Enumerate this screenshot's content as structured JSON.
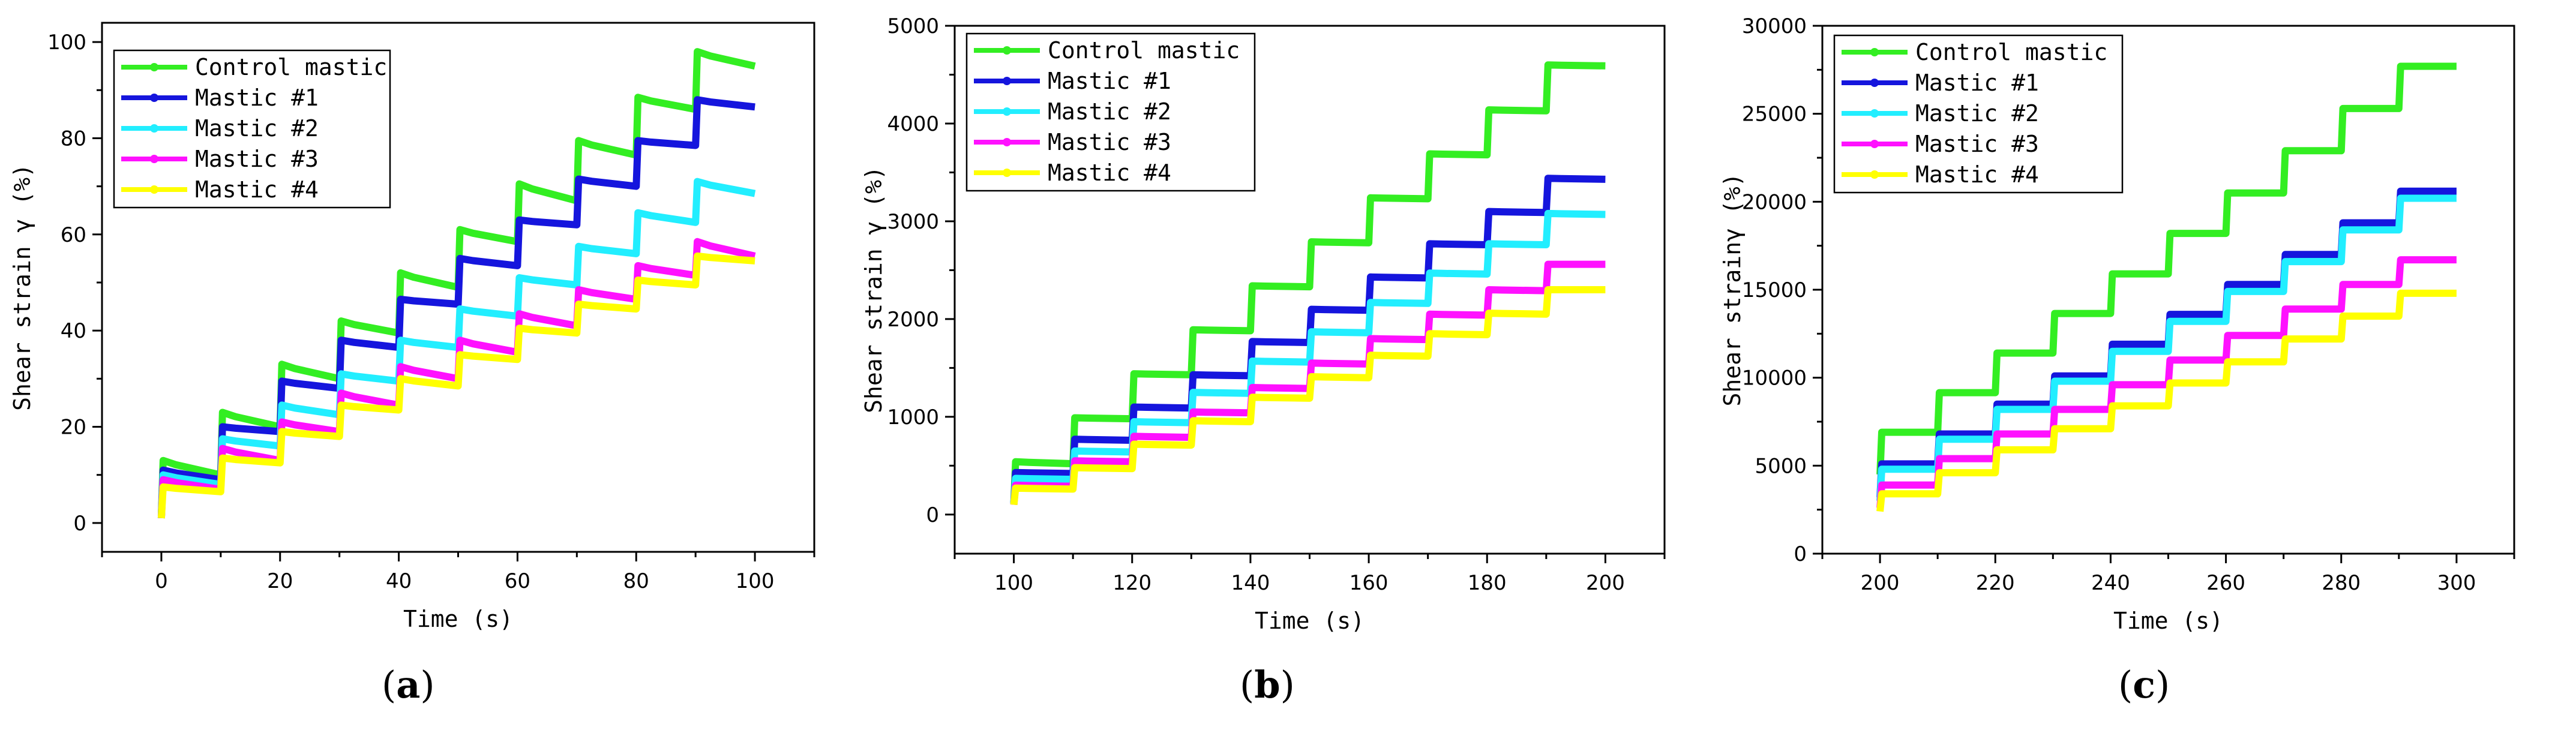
{
  "series_colors": [
    "#33ee22",
    "#1515dd",
    "#22eeff",
    "#ff11ff",
    "#ffff00"
  ],
  "chart_data": [
    {
      "type": "line",
      "panel": "a",
      "xlabel": "Time (s)",
      "ylabel": "Shear strain γ (%)",
      "xlim": [
        -10,
        110
      ],
      "ylim": [
        -6,
        104
      ],
      "xticks": [
        0,
        20,
        40,
        60,
        80,
        100
      ],
      "yticks": [
        0,
        20,
        40,
        60,
        80,
        100
      ],
      "x_start": 0,
      "step_interval": 10,
      "legend_position": "top-left",
      "series": [
        {
          "name": "Control mastic",
          "start": 1.5,
          "steps": [
            [
              13,
              10
            ],
            [
              23,
              20
            ],
            [
              33,
              30
            ],
            [
              42,
              39.5
            ],
            [
              52,
              49
            ],
            [
              61,
              58.5
            ],
            [
              70.5,
              67
            ],
            [
              79.5,
              76.5
            ],
            [
              88.5,
              86
            ],
            [
              98,
              95
            ]
          ]
        },
        {
          "name": "Mastic #1",
          "start": 1,
          "steps": [
            [
              11,
              9
            ],
            [
              20,
              19
            ],
            [
              29.5,
              28
            ],
            [
              38,
              36.5
            ],
            [
              46.5,
              45.5
            ],
            [
              55,
              53.5
            ],
            [
              63,
              62
            ],
            [
              71.5,
              70
            ],
            [
              79.5,
              78.5
            ],
            [
              88,
              86.5
            ]
          ]
        },
        {
          "name": "Mastic #2",
          "start": 1,
          "steps": [
            [
              10,
              8
            ],
            [
              17.5,
              16
            ],
            [
              24.5,
              22.5
            ],
            [
              31,
              29.5
            ],
            [
              38,
              36.5
            ],
            [
              44.5,
              43
            ],
            [
              51,
              49.5
            ],
            [
              57.5,
              56
            ],
            [
              64.5,
              62.5
            ],
            [
              71,
              68.5
            ]
          ]
        },
        {
          "name": "Mastic #3",
          "start": 1,
          "steps": [
            [
              9,
              7
            ],
            [
              15.5,
              13
            ],
            [
              21,
              19
            ],
            [
              27,
              24.5
            ],
            [
              32.5,
              30
            ],
            [
              38,
              35.5
            ],
            [
              43.5,
              41
            ],
            [
              48.5,
              46.5
            ],
            [
              53.5,
              51.5
            ],
            [
              58.5,
              55.5
            ]
          ]
        },
        {
          "name": "Mastic #4",
          "start": 1,
          "steps": [
            [
              7.5,
              6.5
            ],
            [
              13.5,
              12.5
            ],
            [
              19,
              18
            ],
            [
              24.5,
              23.5
            ],
            [
              30,
              28.5
            ],
            [
              35,
              34
            ],
            [
              40.5,
              39.5
            ],
            [
              45.5,
              44.5
            ],
            [
              50.5,
              49.5
            ],
            [
              55.5,
              54.5
            ]
          ]
        }
      ]
    },
    {
      "type": "line",
      "panel": "b",
      "xlabel": "Time (s)",
      "ylabel": "Shear strain γ (%)",
      "xlim": [
        90,
        210
      ],
      "ylim": [
        -400,
        5000
      ],
      "xticks": [
        100,
        120,
        140,
        160,
        180,
        200
      ],
      "yticks": [
        0,
        1000,
        2000,
        3000,
        4000,
        5000
      ],
      "x_start": 100,
      "step_interval": 10,
      "legend_position": "top-left",
      "series": [
        {
          "name": "Control mastic",
          "start": 120,
          "steps": [
            [
              540,
              520
            ],
            [
              990,
              980
            ],
            [
              1440,
              1430
            ],
            [
              1890,
              1880
            ],
            [
              2340,
              2330
            ],
            [
              2790,
              2780
            ],
            [
              3240,
              3230
            ],
            [
              3690,
              3680
            ],
            [
              4140,
              4130
            ],
            [
              4600,
              4590
            ]
          ]
        },
        {
          "name": "Mastic #1",
          "start": 110,
          "steps": [
            [
              430,
              420
            ],
            [
              770,
              760
            ],
            [
              1100,
              1090
            ],
            [
              1430,
              1420
            ],
            [
              1770,
              1760
            ],
            [
              2100,
              2090
            ],
            [
              2430,
              2420
            ],
            [
              2770,
              2760
            ],
            [
              3100,
              3090
            ],
            [
              3440,
              3430
            ]
          ]
        },
        {
          "name": "Mastic #2",
          "start": 110,
          "steps": [
            [
              370,
              360
            ],
            [
              650,
              640
            ],
            [
              950,
              940
            ],
            [
              1250,
              1240
            ],
            [
              1570,
              1560
            ],
            [
              1870,
              1860
            ],
            [
              2170,
              2160
            ],
            [
              2470,
              2460
            ],
            [
              2770,
              2760
            ],
            [
              3080,
              3070
            ]
          ]
        },
        {
          "name": "Mastic #3",
          "start": 100,
          "steps": [
            [
              300,
              290
            ],
            [
              550,
              540
            ],
            [
              800,
              790
            ],
            [
              1050,
              1040
            ],
            [
              1300,
              1290
            ],
            [
              1550,
              1540
            ],
            [
              1800,
              1790
            ],
            [
              2050,
              2040
            ],
            [
              2300,
              2290
            ],
            [
              2560,
              2560
            ]
          ]
        },
        {
          "name": "Mastic #4",
          "start": 100,
          "steps": [
            [
              270,
              260
            ],
            [
              480,
              470
            ],
            [
              720,
              710
            ],
            [
              960,
              950
            ],
            [
              1200,
              1190
            ],
            [
              1410,
              1400
            ],
            [
              1630,
              1620
            ],
            [
              1850,
              1840
            ],
            [
              2060,
              2050
            ],
            [
              2300,
              2300
            ]
          ]
        }
      ]
    },
    {
      "type": "line",
      "panel": "c",
      "xlabel": "Time (s)",
      "ylabel": "Shear strainγ (%)",
      "xlim": [
        190,
        310
      ],
      "ylim": [
        0,
        30000
      ],
      "xticks": [
        200,
        220,
        240,
        260,
        280,
        300
      ],
      "yticks": [
        0,
        5000,
        10000,
        15000,
        20000,
        25000,
        30000
      ],
      "x_start": 200,
      "step_interval": 10,
      "legend_position": "top-left",
      "series": [
        {
          "name": "Control mastic",
          "start": 4500,
          "steps": [
            [
              6900,
              6900
            ],
            [
              9150,
              9150
            ],
            [
              11400,
              11400
            ],
            [
              13650,
              13650
            ],
            [
              15900,
              15900
            ],
            [
              18200,
              18200
            ],
            [
              20500,
              20500
            ],
            [
              22900,
              22900
            ],
            [
              25300,
              25300
            ],
            [
              27700,
              27700
            ]
          ]
        },
        {
          "name": "Mastic #1",
          "start": 3200,
          "steps": [
            [
              5100,
              5100
            ],
            [
              6800,
              6800
            ],
            [
              8500,
              8500
            ],
            [
              10100,
              10100
            ],
            [
              11900,
              11900
            ],
            [
              13600,
              13600
            ],
            [
              15300,
              15300
            ],
            [
              17000,
              17000
            ],
            [
              18800,
              18800
            ],
            [
              20600,
              20600
            ]
          ]
        },
        {
          "name": "Mastic #2",
          "start": 3000,
          "steps": [
            [
              4800,
              4800
            ],
            [
              6500,
              6500
            ],
            [
              8200,
              8200
            ],
            [
              9800,
              9800
            ],
            [
              11500,
              11500
            ],
            [
              13200,
              13200
            ],
            [
              14900,
              14900
            ],
            [
              16600,
              16600
            ],
            [
              18400,
              18400
            ],
            [
              20200,
              20200
            ]
          ]
        },
        {
          "name": "Mastic #3",
          "start": 2600,
          "steps": [
            [
              3900,
              3900
            ],
            [
              5400,
              5400
            ],
            [
              6800,
              6800
            ],
            [
              8200,
              8200
            ],
            [
              9600,
              9600
            ],
            [
              11000,
              11000
            ],
            [
              12400,
              12400
            ],
            [
              13900,
              13900
            ],
            [
              15300,
              15300
            ],
            [
              16700,
              16700
            ]
          ]
        },
        {
          "name": "Mastic #4",
          "start": 2400,
          "steps": [
            [
              3400,
              3400
            ],
            [
              4600,
              4600
            ],
            [
              5900,
              5900
            ],
            [
              7100,
              7100
            ],
            [
              8400,
              8400
            ],
            [
              9700,
              9700
            ],
            [
              10900,
              10900
            ],
            [
              12200,
              12200
            ],
            [
              13500,
              13500
            ],
            [
              14800,
              14800
            ]
          ]
        }
      ]
    }
  ],
  "panel_labels": [
    "a",
    "b",
    "c"
  ]
}
